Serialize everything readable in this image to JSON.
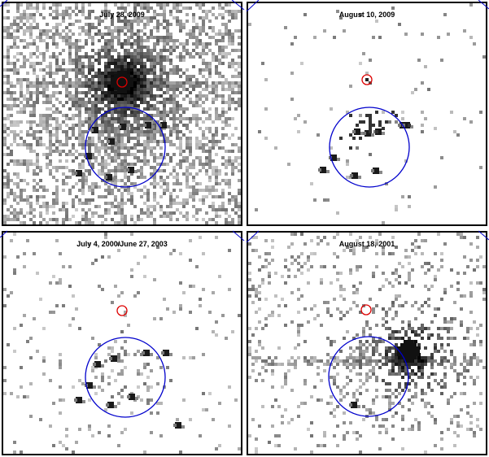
{
  "figure": {
    "panels": [
      {
        "id": "top-left",
        "label": "July 28, 2009",
        "point_source": "bright",
        "sparse_level": 0.9
      },
      {
        "id": "top-right",
        "label": "August 10, 2009",
        "point_source": "weak",
        "sparse_level": 0.04
      },
      {
        "id": "bottom-left",
        "label": "July 4, 2000/June 27, 2003",
        "point_source": "none",
        "sparse_level": 0.1
      },
      {
        "id": "bottom-right",
        "label": "August 18, 2001",
        "point_source": "offset-bright",
        "sparse_level": 0.25
      }
    ],
    "colors": {
      "large_circle": "#0000cc",
      "small_circle": "#dd0000",
      "pixels": "#000000",
      "frame": "#000000"
    }
  }
}
